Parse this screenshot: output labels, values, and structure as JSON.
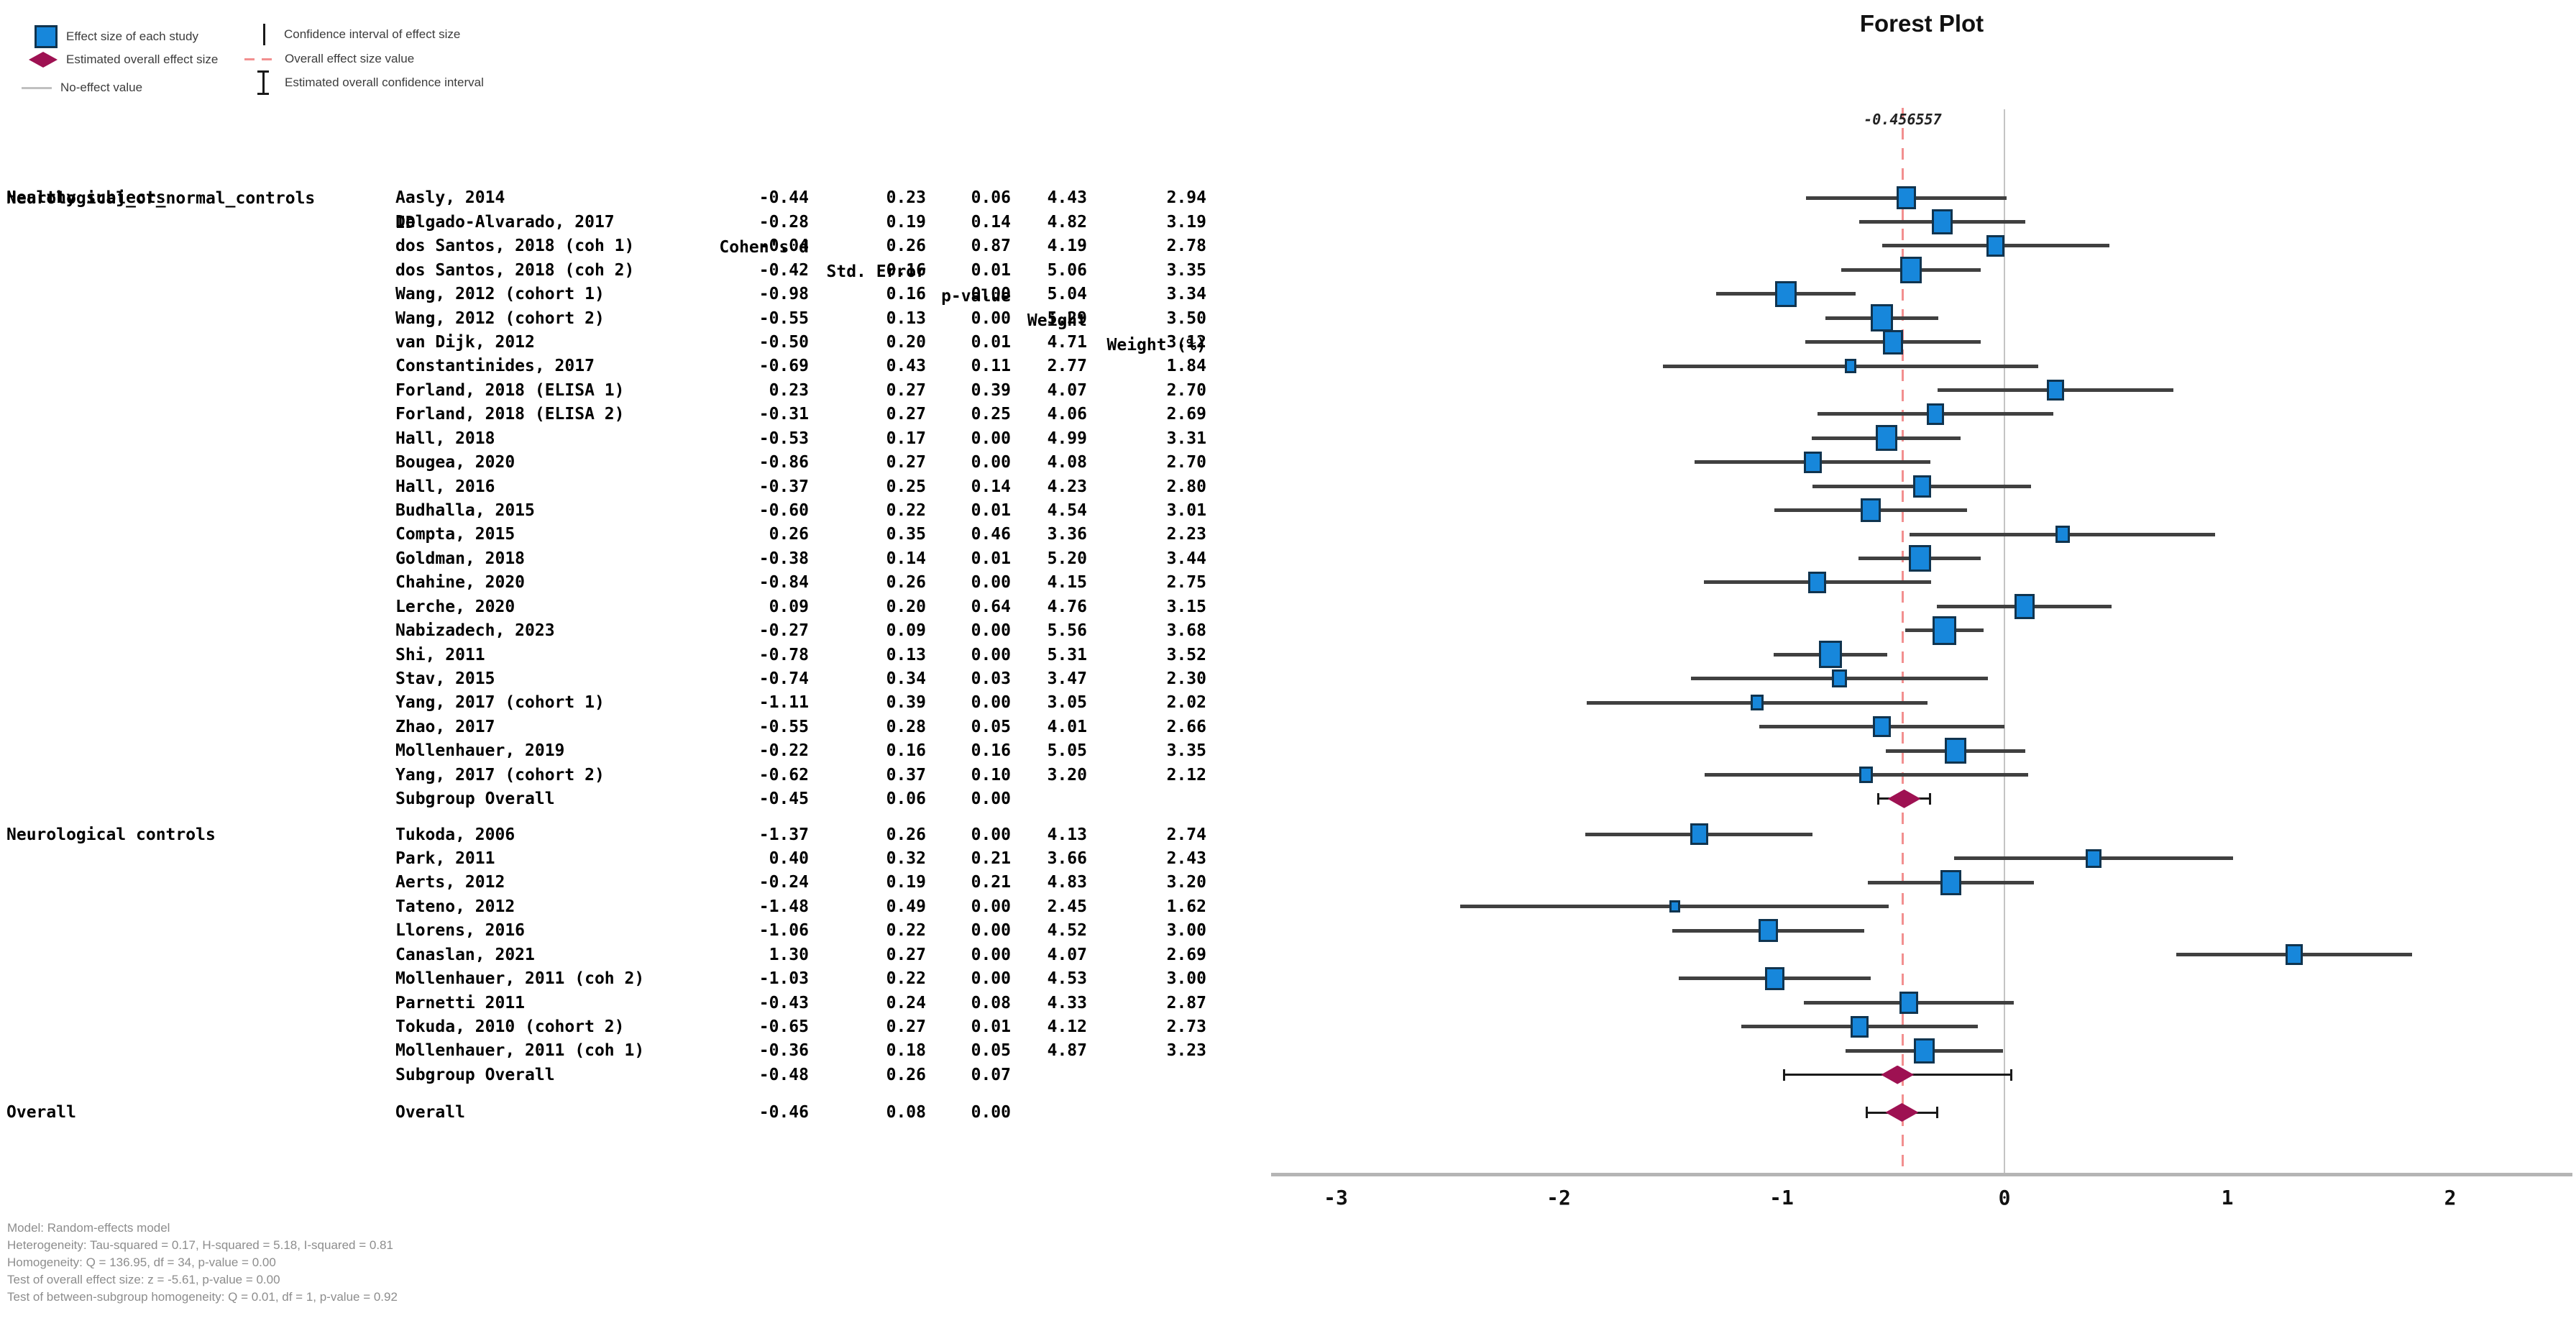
{
  "title": "Forest Plot",
  "legend": {
    "col1": [
      {
        "icon": "effect-size-square",
        "label": "Effect size of each study"
      },
      {
        "icon": "overall-diamond",
        "label": "Estimated overall effect size"
      },
      {
        "icon": "no-effect-line",
        "label": "No-effect value"
      }
    ],
    "col2": [
      {
        "icon": "ci-vertical-line",
        "label": "Confidence interval of effect size"
      },
      {
        "icon": "overall-dashed-line",
        "label": "Overall effect size value"
      },
      {
        "icon": "overall-ci-ibeam",
        "label": "Estimated overall confidence interval"
      }
    ]
  },
  "table": {
    "headers": {
      "group": "Neurological_or_normal_controls",
      "id": "ID",
      "d": "Cohen's d",
      "se": "Std. Error",
      "p": "p-value",
      "w": "Weight",
      "wpct": "Weight (%)"
    }
  },
  "chart_data": {
    "type": "forest",
    "title": "Forest Plot",
    "xlabel": "Cohen's d",
    "axis": {
      "ticks": [
        -3,
        -2,
        -1,
        0,
        1,
        2
      ],
      "xlim": [
        -3.3,
        2.55
      ],
      "ci_multiplier": 1.96
    },
    "overall_effect_label": "-0.456557",
    "overall_effect_value": -0.456557,
    "groups": [
      {
        "label": "Healthy subjects",
        "studies": [
          {
            "id": "Aasly, 2014",
            "d": "-0.44",
            "se": "0.23",
            "p": "0.06",
            "w": "4.43",
            "wpct": "2.94"
          },
          {
            "id": "Delgado-Alvarado, 2017",
            "d": "-0.28",
            "se": "0.19",
            "p": "0.14",
            "w": "4.82",
            "wpct": "3.19"
          },
          {
            "id": "dos Santos, 2018 (coh 1)",
            "d": "-0.04",
            "se": "0.26",
            "p": "0.87",
            "w": "4.19",
            "wpct": "2.78"
          },
          {
            "id": "dos Santos, 2018 (coh 2)",
            "d": "-0.42",
            "se": "0.16",
            "p": "0.01",
            "w": "5.06",
            "wpct": "3.35"
          },
          {
            "id": "Wang, 2012 (cohort 1)",
            "d": "-0.98",
            "se": "0.16",
            "p": "0.00",
            "w": "5.04",
            "wpct": "3.34"
          },
          {
            "id": "Wang, 2012 (cohort 2)",
            "d": "-0.55",
            "se": "0.13",
            "p": "0.00",
            "w": "5.29",
            "wpct": "3.50"
          },
          {
            "id": "van Dijk, 2012",
            "d": "-0.50",
            "se": "0.20",
            "p": "0.01",
            "w": "4.71",
            "wpct": "3.12"
          },
          {
            "id": "Constantinides, 2017",
            "d": "-0.69",
            "se": "0.43",
            "p": "0.11",
            "w": "2.77",
            "wpct": "1.84"
          },
          {
            "id": "Forland, 2018 (ELISA 1)",
            "d": "0.23",
            "se": "0.27",
            "p": "0.39",
            "w": "4.07",
            "wpct": "2.70"
          },
          {
            "id": "Forland, 2018 (ELISA 2)",
            "d": "-0.31",
            "se": "0.27",
            "p": "0.25",
            "w": "4.06",
            "wpct": "2.69"
          },
          {
            "id": "Hall, 2018",
            "d": "-0.53",
            "se": "0.17",
            "p": "0.00",
            "w": "4.99",
            "wpct": "3.31"
          },
          {
            "id": "Bougea, 2020",
            "d": "-0.86",
            "se": "0.27",
            "p": "0.00",
            "w": "4.08",
            "wpct": "2.70"
          },
          {
            "id": "Hall, 2016",
            "d": "-0.37",
            "se": "0.25",
            "p": "0.14",
            "w": "4.23",
            "wpct": "2.80"
          },
          {
            "id": "Budhalla, 2015",
            "d": "-0.60",
            "se": "0.22",
            "p": "0.01",
            "w": "4.54",
            "wpct": "3.01"
          },
          {
            "id": "Compta, 2015",
            "d": "0.26",
            "se": "0.35",
            "p": "0.46",
            "w": "3.36",
            "wpct": "2.23"
          },
          {
            "id": "Goldman, 2018",
            "d": "-0.38",
            "se": "0.14",
            "p": "0.01",
            "w": "5.20",
            "wpct": "3.44"
          },
          {
            "id": "Chahine, 2020",
            "d": "-0.84",
            "se": "0.26",
            "p": "0.00",
            "w": "4.15",
            "wpct": "2.75"
          },
          {
            "id": "Lerche, 2020",
            "d": "0.09",
            "se": "0.20",
            "p": "0.64",
            "w": "4.76",
            "wpct": "3.15"
          },
          {
            "id": "Nabizadech, 2023",
            "d": "-0.27",
            "se": "0.09",
            "p": "0.00",
            "w": "5.56",
            "wpct": "3.68"
          },
          {
            "id": "Shi, 2011",
            "d": "-0.78",
            "se": "0.13",
            "p": "0.00",
            "w": "5.31",
            "wpct": "3.52"
          },
          {
            "id": "Stav, 2015",
            "d": "-0.74",
            "se": "0.34",
            "p": "0.03",
            "w": "3.47",
            "wpct": "2.30"
          },
          {
            "id": "Yang, 2017 (cohort 1)",
            "d": "-1.11",
            "se": "0.39",
            "p": "0.00",
            "w": "3.05",
            "wpct": "2.02"
          },
          {
            "id": "Zhao, 2017",
            "d": "-0.55",
            "se": "0.28",
            "p": "0.05",
            "w": "4.01",
            "wpct": "2.66"
          },
          {
            "id": "Mollenhauer, 2019",
            "d": "-0.22",
            "se": "0.16",
            "p": "0.16",
            "w": "5.05",
            "wpct": "3.35"
          },
          {
            "id": "Yang, 2017 (cohort 2)",
            "d": "-0.62",
            "se": "0.37",
            "p": "0.10",
            "w": "3.20",
            "wpct": "2.12"
          }
        ],
        "subgroup_overall": {
          "id": "Subgroup Overall",
          "d": "-0.45",
          "se": "0.06",
          "p": "0.00"
        }
      },
      {
        "label": "Neurological controls",
        "studies": [
          {
            "id": "Tukoda, 2006",
            "d": "-1.37",
            "se": "0.26",
            "p": "0.00",
            "w": "4.13",
            "wpct": "2.74"
          },
          {
            "id": "Park, 2011",
            "d": "0.40",
            "se": "0.32",
            "p": "0.21",
            "w": "3.66",
            "wpct": "2.43"
          },
          {
            "id": "Aerts, 2012",
            "d": "-0.24",
            "se": "0.19",
            "p": "0.21",
            "w": "4.83",
            "wpct": "3.20"
          },
          {
            "id": "Tateno, 2012",
            "d": "-1.48",
            "se": "0.49",
            "p": "0.00",
            "w": "2.45",
            "wpct": "1.62"
          },
          {
            "id": "Llorens, 2016",
            "d": "-1.06",
            "se": "0.22",
            "p": "0.00",
            "w": "4.52",
            "wpct": "3.00"
          },
          {
            "id": "Canaslan, 2021",
            "d": "1.30",
            "se": "0.27",
            "p": "0.00",
            "w": "4.07",
            "wpct": "2.69"
          },
          {
            "id": "Mollenhauer, 2011 (coh 2)",
            "d": "-1.03",
            "se": "0.22",
            "p": "0.00",
            "w": "4.53",
            "wpct": "3.00"
          },
          {
            "id": "Parnetti 2011",
            "d": "-0.43",
            "se": "0.24",
            "p": "0.08",
            "w": "4.33",
            "wpct": "2.87"
          },
          {
            "id": "Tokuda, 2010 (cohort 2)",
            "d": "-0.65",
            "se": "0.27",
            "p": "0.01",
            "w": "4.12",
            "wpct": "2.73"
          },
          {
            "id": "Mollenhauer, 2011 (coh 1)",
            "d": "-0.36",
            "se": "0.18",
            "p": "0.05",
            "w": "4.87",
            "wpct": "3.23"
          }
        ],
        "subgroup_overall": {
          "id": "Subgroup Overall",
          "d": "-0.48",
          "se": "0.26",
          "p": "0.07"
        }
      }
    ],
    "overall": {
      "label": "Overall",
      "d": "-0.46",
      "se": "0.08",
      "p": "0.00"
    }
  },
  "footnotes": [
    "Model: Random-effects model",
    "Heterogeneity: Tau-squared = 0.17, H-squared = 5.18, I-squared = 0.81",
    "Homogeneity: Q = 136.95, df = 34, p-value = 0.00",
    "Test of overall effect size: z = -5.61, p-value = 0.00",
    "Test of between-subgroup homogeneity: Q = 0.01, df = 1, p-value = 0.92"
  ],
  "colors": {
    "effect_marker": "#1787db",
    "marker_border": "#10344f",
    "overall_diamond": "#9e1152",
    "overall_effect_line": "#f28f8f",
    "no_effect_line": "#c4c4c4",
    "ci_line": "#404040",
    "axis_line": "#b5b5b5"
  }
}
